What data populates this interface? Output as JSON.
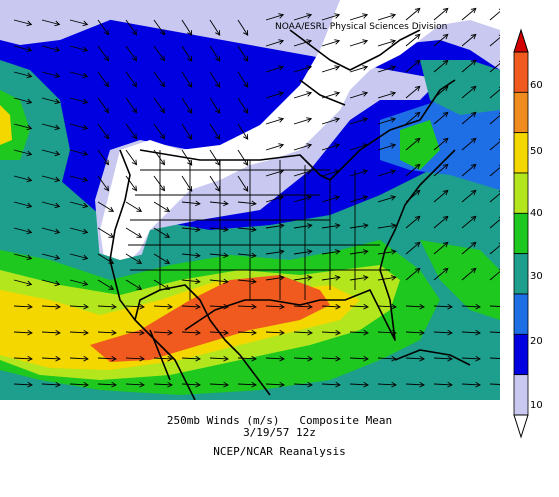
{
  "credit": "NOAA/ESRL Physical Sciences Division",
  "caption": {
    "line1": "250mb Winds (m/s)   Composite Mean",
    "line2": "3/19/57 12z",
    "line3": "NCEP/NCAR Reanalysis"
  },
  "colorbar": {
    "tick_labels": [
      "10",
      "20",
      "30",
      "40",
      "50",
      "60"
    ],
    "colors": [
      "#ffffff",
      "#c8c8f0",
      "#0000e0",
      "#1e6ee6",
      "#1e9e8c",
      "#1ec81e",
      "#b4e61e",
      "#f5d700",
      "#f08c1e",
      "#f05a1e",
      "#d20000"
    ]
  },
  "colors": {
    "lt10": "#ffffff",
    "c10_15": "#c8c8f0",
    "c15_20": "#0000e0",
    "c20_25": "#1e6ee6",
    "c25_30": "#1e9e8c",
    "c30_40": "#1ec81e",
    "c40_45": "#b4e61e",
    "c45_55": "#f5d700",
    "c55_60": "#f08c1e",
    "c60_65": "#f05a1e",
    "gt65": "#d20000"
  }
}
